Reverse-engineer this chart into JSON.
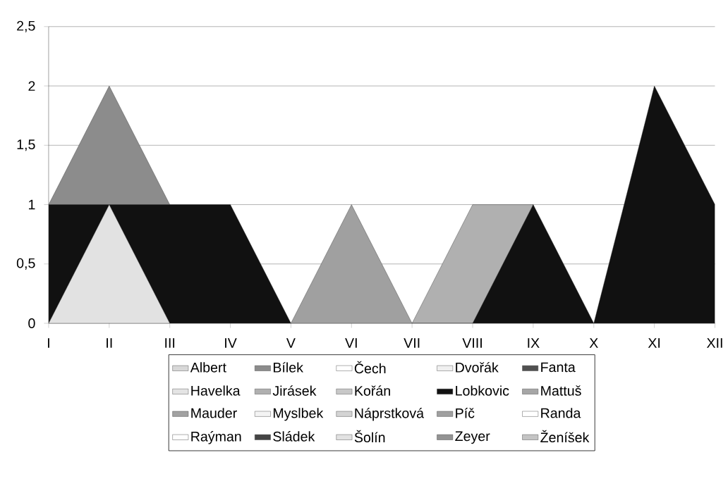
{
  "chart_data": {
    "type": "area",
    "grid": "y",
    "legend": "bottom",
    "categories": [
      "I",
      "II",
      "III",
      "IV",
      "V",
      "VI",
      "VII",
      "VIII",
      "IX",
      "X",
      "XI",
      "XII"
    ],
    "ylim": [
      0,
      2.5
    ],
    "yticks": [
      0,
      {
        "value": 0.5,
        "label": "0,5"
      },
      1,
      {
        "value": 1.5,
        "label": "1,5"
      },
      2,
      {
        "value": 2.5,
        "label": "2,5"
      }
    ],
    "series": [
      {
        "name": "Albert",
        "color": "#d8d8d8",
        "values": [
          null,
          null,
          null,
          null,
          null,
          null,
          null,
          null,
          null,
          null,
          null,
          null
        ]
      },
      {
        "name": "Bílek",
        "color": "#8c8c8c",
        "values": [
          1,
          2,
          1,
          null,
          null,
          null,
          null,
          null,
          null,
          null,
          null,
          null
        ]
      },
      {
        "name": "Čech",
        "color": "#ffffff",
        "values": [
          null,
          null,
          null,
          null,
          null,
          null,
          null,
          null,
          null,
          null,
          null,
          null
        ]
      },
      {
        "name": "Dvořák",
        "color": "#f0f0f0",
        "values": [
          null,
          null,
          null,
          null,
          null,
          null,
          null,
          null,
          null,
          null,
          null,
          null
        ]
      },
      {
        "name": "Fanta",
        "color": "#505050",
        "values": [
          null,
          null,
          null,
          null,
          null,
          null,
          null,
          null,
          null,
          null,
          null,
          null
        ]
      },
      {
        "name": "Havelka",
        "color": "#e4e4e4",
        "values": [
          null,
          null,
          null,
          null,
          null,
          null,
          null,
          null,
          null,
          null,
          null,
          null
        ]
      },
      {
        "name": "Jirásek",
        "color": "#b0b0b0",
        "values": [
          null,
          null,
          null,
          null,
          null,
          null,
          0,
          1,
          1,
          null,
          null,
          null
        ]
      },
      {
        "name": "Kořán",
        "color": "#c8c8c8",
        "values": [
          null,
          null,
          null,
          null,
          null,
          null,
          null,
          null,
          null,
          null,
          null,
          null
        ]
      },
      {
        "name": "Lobkovic",
        "color": "#111111",
        "values": [
          1,
          1,
          1,
          1,
          0,
          0,
          0,
          0,
          1,
          0,
          2,
          1
        ]
      },
      {
        "name": "Mattuš",
        "color": "#a6a6a6",
        "values": [
          null,
          null,
          null,
          null,
          null,
          null,
          null,
          null,
          null,
          null,
          null,
          null
        ]
      },
      {
        "name": "Mauder",
        "color": "#a2a2a2",
        "values": [
          null,
          null,
          null,
          null,
          null,
          null,
          null,
          null,
          null,
          null,
          null,
          null
        ]
      },
      {
        "name": "Myslbek",
        "color": "#f4f4f4",
        "values": [
          null,
          null,
          null,
          null,
          null,
          null,
          null,
          null,
          null,
          null,
          null,
          null
        ]
      },
      {
        "name": "Náprstková",
        "color": "#d4d4d4",
        "values": [
          null,
          null,
          null,
          null,
          null,
          null,
          null,
          null,
          null,
          null,
          null,
          null
        ]
      },
      {
        "name": "Píč",
        "color": "#a0a0a0",
        "values": [
          null,
          null,
          null,
          null,
          0,
          1,
          0,
          null,
          null,
          null,
          null,
          null
        ]
      },
      {
        "name": "Randa",
        "color": "#ffffff",
        "values": [
          null,
          null,
          null,
          null,
          null,
          null,
          null,
          null,
          null,
          null,
          null,
          null
        ]
      },
      {
        "name": "Raýman",
        "color": "#fefefe",
        "values": [
          null,
          null,
          null,
          null,
          null,
          null,
          null,
          null,
          null,
          null,
          null,
          null
        ]
      },
      {
        "name": "Sládek",
        "color": "#444444",
        "values": [
          null,
          null,
          null,
          null,
          null,
          null,
          null,
          null,
          null,
          null,
          null,
          null
        ]
      },
      {
        "name": "Šolín",
        "color": "#e2e2e2",
        "values": [
          0,
          1,
          0,
          null,
          null,
          null,
          null,
          null,
          null,
          null,
          null,
          null
        ]
      },
      {
        "name": "Zeyer",
        "color": "#939393",
        "values": [
          null,
          null,
          null,
          null,
          null,
          null,
          null,
          null,
          null,
          null,
          null,
          null
        ]
      },
      {
        "name": "Ženíšek",
        "color": "#c4c4c4",
        "values": [
          null,
          null,
          null,
          null,
          null,
          null,
          null,
          null,
          null,
          null,
          null,
          null
        ]
      }
    ]
  }
}
